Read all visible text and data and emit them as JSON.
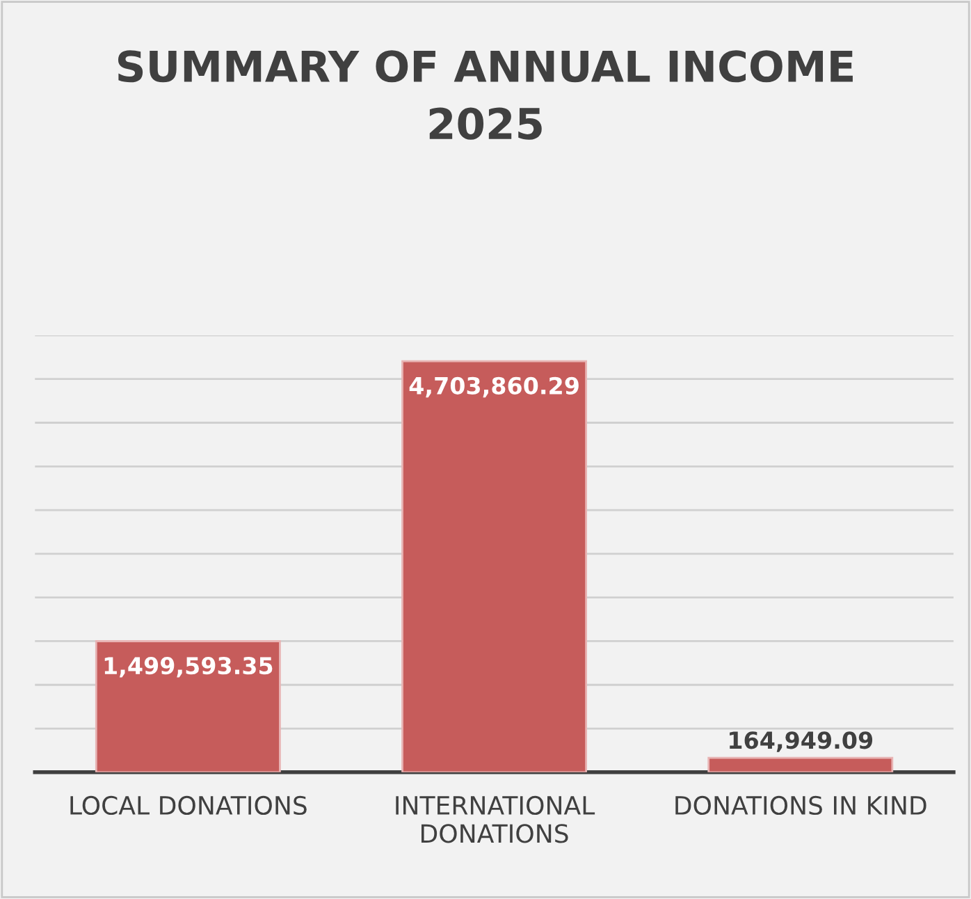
{
  "chart_data": {
    "type": "bar",
    "title": "SUMMARY OF ANNUAL INCOME\n2025",
    "categories": [
      "LOCAL DONATIONS",
      "INTERNATIONAL\nDONATIONS",
      "DONATIONS IN KIND"
    ],
    "values": [
      1499593.35,
      4703860.29,
      164949.09
    ],
    "value_labels": [
      "1,499,593.35",
      "4,703,860.29",
      "164,949.09"
    ],
    "color": "#c65c5b",
    "ylim": [
      0,
      5000000
    ],
    "yticks": [
      {
        "value": 0,
        "label": null
      },
      {
        "value": 500000,
        "label": null
      },
      {
        "value": 1000000,
        "label": null
      },
      {
        "value": 1500000,
        "label": null
      },
      {
        "value": 2000000,
        "label": null
      },
      {
        "value": 2500000,
        "label": null
      },
      {
        "value": 3000000,
        "label": null
      },
      {
        "value": 3500000,
        "label": null
      },
      {
        "value": 4000000,
        "label": null
      },
      {
        "value": 4500000,
        "label": null
      },
      {
        "value": 5000000,
        "label": null
      }
    ],
    "tick_labels": "x",
    "grid": "y",
    "legend": false
  }
}
